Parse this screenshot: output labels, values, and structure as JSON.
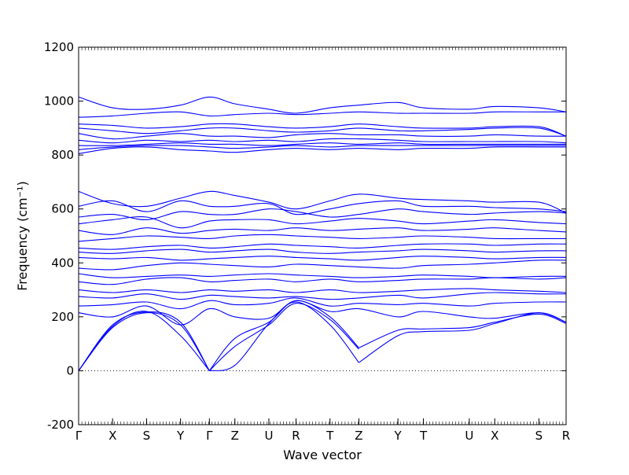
{
  "chart_data": {
    "type": "line",
    "title": "",
    "xlabel": "Wave vector",
    "ylabel": "Frequency (cm⁻¹)",
    "ylim": [
      -200,
      1200
    ],
    "yticks": [
      -200,
      0,
      200,
      400,
      600,
      800,
      1000,
      1200
    ],
    "xticks": [
      {
        "label": "Γ",
        "x": 0.0
      },
      {
        "label": "X",
        "x": 1.0
      },
      {
        "label": "S",
        "x": 2.0
      },
      {
        "label": "Y",
        "x": 3.0
      },
      {
        "label": "Γ",
        "x": 3.85
      },
      {
        "label": "Z",
        "x": 4.6
      },
      {
        "label": "U",
        "x": 5.6
      },
      {
        "label": "R",
        "x": 6.4
      },
      {
        "label": "T",
        "x": 7.4
      },
      {
        "label": "Z",
        "x": 8.25
      },
      {
        "label": "Y",
        "x": 9.4
      },
      {
        "label": "T",
        "x": 10.15
      },
      {
        "label": "U",
        "x": 11.5
      },
      {
        "label": "X",
        "x": 12.25
      },
      {
        "label": "S",
        "x": 13.55
      },
      {
        "label": "R",
        "x": 14.35
      }
    ],
    "xlim": [
      0,
      14.35
    ],
    "zero_line": {
      "y": 0,
      "style": "dotted"
    },
    "line_color": "#0000ff",
    "series": [
      {
        "x": [
          0,
          1,
          2,
          3,
          3.85
        ],
        "values": [
          0,
          165,
          220,
          130,
          0
        ]
      },
      {
        "x": [
          0,
          1,
          2,
          3,
          3.85
        ],
        "values": [
          0,
          160,
          215,
          170,
          0
        ]
      },
      {
        "x": [
          0,
          1,
          2,
          3,
          3.85
        ],
        "values": [
          0,
          170,
          218,
          180,
          0
        ]
      },
      {
        "x": [
          3.85,
          4.6,
          5.6,
          6.4,
          7.4,
          8.25
        ],
        "values": [
          0,
          20,
          175,
          255,
          170,
          30
        ]
      },
      {
        "x": [
          3.85,
          4.6,
          5.6,
          6.4,
          7.4,
          8.25
        ],
        "values": [
          0,
          90,
          170,
          250,
          190,
          80
        ]
      },
      {
        "x": [
          3.85,
          4.6,
          5.6,
          6.4,
          7.4,
          8.25
        ],
        "values": [
          0,
          120,
          180,
          260,
          200,
          85
        ]
      },
      {
        "x": [
          8.25,
          9.4,
          10.15,
          11.5,
          12.25,
          13.55,
          14.35
        ],
        "values": [
          30,
          130,
          145,
          150,
          175,
          215,
          180
        ]
      },
      {
        "x": [
          8.25,
          9.4,
          10.15,
          11.5,
          12.25,
          13.55,
          14.35
        ],
        "values": [
          85,
          150,
          155,
          160,
          180,
          210,
          175
        ]
      },
      {
        "x": [
          0,
          1,
          2,
          3,
          3.85,
          4.6,
          5.6,
          6.4,
          7.4,
          8.25,
          9.4,
          10.15,
          11.5,
          12.25,
          13.55,
          14.35
        ],
        "values": [
          215,
          200,
          240,
          170,
          230,
          200,
          195,
          260,
          220,
          230,
          200,
          220,
          200,
          195,
          215,
          180
        ]
      },
      {
        "x": [
          0,
          1,
          2,
          3,
          3.85,
          4.6,
          5.6,
          6.4,
          7.4,
          8.25,
          9.4,
          10.15,
          11.5,
          12.25,
          13.55,
          14.35
        ],
        "values": [
          240,
          245,
          255,
          230,
          260,
          245,
          250,
          270,
          240,
          250,
          245,
          250,
          240,
          250,
          255,
          255
        ]
      },
      {
        "x": [
          0,
          1,
          2,
          3,
          3.85,
          4.6,
          5.6,
          6.4,
          7.4,
          8.25,
          9.4,
          10.15,
          11.5,
          12.25,
          13.55,
          14.35
        ],
        "values": [
          275,
          270,
          285,
          265,
          280,
          275,
          270,
          275,
          265,
          270,
          280,
          270,
          285,
          290,
          285,
          285
        ]
      },
      {
        "x": [
          0,
          1,
          2,
          3,
          3.85,
          4.6,
          5.6,
          6.4,
          7.4,
          8.25,
          9.4,
          10.15,
          11.5,
          12.25,
          13.55,
          14.35
        ],
        "values": [
          300,
          290,
          300,
          290,
          300,
          295,
          300,
          290,
          300,
          290,
          295,
          300,
          305,
          300,
          295,
          290
        ]
      },
      {
        "x": [
          0,
          1,
          2,
          3,
          3.85,
          4.6,
          5.6,
          6.4,
          7.4,
          8.25,
          9.4,
          10.15,
          11.5,
          12.25,
          13.55,
          14.35
        ],
        "values": [
          330,
          320,
          340,
          345,
          330,
          335,
          340,
          330,
          340,
          330,
          335,
          340,
          340,
          345,
          340,
          345
        ]
      },
      {
        "x": [
          0,
          1,
          2,
          3,
          3.85,
          4.6,
          5.6,
          6.4,
          7.4,
          8.25,
          9.4,
          10.15,
          11.5,
          12.25,
          13.55,
          14.35
        ],
        "values": [
          360,
          345,
          350,
          355,
          350,
          355,
          360,
          355,
          350,
          345,
          350,
          355,
          350,
          345,
          350,
          350
        ]
      },
      {
        "x": [
          0,
          1,
          2,
          3,
          3.85,
          4.6,
          5.6,
          6.4,
          7.4,
          8.25,
          9.4,
          10.15,
          11.5,
          12.25,
          13.55,
          14.35
        ],
        "values": [
          380,
          375,
          390,
          400,
          395,
          390,
          385,
          395,
          390,
          385,
          380,
          390,
          395,
          400,
          410,
          410
        ]
      },
      {
        "x": [
          0,
          1,
          2,
          3,
          3.85,
          4.6,
          5.6,
          6.4,
          7.4,
          8.25,
          9.4,
          10.15,
          11.5,
          12.25,
          13.55,
          14.35
        ],
        "values": [
          420,
          415,
          420,
          410,
          415,
          420,
          425,
          420,
          415,
          410,
          420,
          425,
          420,
          415,
          420,
          420
        ]
      },
      {
        "x": [
          0,
          1,
          2,
          3,
          3.85,
          4.6,
          5.6,
          6.4,
          7.4,
          8.25,
          9.4,
          10.15,
          11.5,
          12.25,
          13.55,
          14.35
        ],
        "values": [
          440,
          435,
          445,
          450,
          440,
          445,
          450,
          440,
          435,
          440,
          445,
          450,
          445,
          440,
          445,
          445
        ]
      },
      {
        "x": [
          0,
          1,
          2,
          3,
          3.85,
          4.6,
          5.6,
          6.4,
          7.4,
          8.25,
          9.4,
          10.15,
          11.5,
          12.25,
          13.55,
          14.35
        ],
        "values": [
          455,
          450,
          460,
          465,
          455,
          460,
          470,
          465,
          460,
          455,
          465,
          470,
          470,
          465,
          470,
          470
        ]
      },
      {
        "x": [
          0,
          1,
          2,
          3,
          3.85,
          4.6,
          5.6,
          6.4,
          7.4,
          8.25,
          9.4,
          10.15,
          11.5,
          12.25,
          13.55,
          14.35
        ],
        "values": [
          480,
          490,
          500,
          495,
          490,
          500,
          505,
          500,
          495,
          490,
          495,
          500,
          495,
          490,
          490,
          490
        ]
      },
      {
        "x": [
          0,
          1,
          2,
          3,
          3.85,
          4.6,
          5.6,
          6.4,
          7.4,
          8.25,
          9.4,
          10.15,
          11.5,
          12.25,
          13.55,
          14.35
        ],
        "values": [
          520,
          505,
          530,
          510,
          520,
          525,
          520,
          530,
          520,
          525,
          530,
          520,
          525,
          530,
          520,
          515
        ]
      },
      {
        "x": [
          0,
          1,
          2,
          3,
          3.85,
          4.6,
          5.6,
          6.4,
          7.4,
          8.25,
          9.4,
          10.15,
          11.5,
          12.25,
          13.55,
          14.35
        ],
        "values": [
          545,
          560,
          570,
          530,
          555,
          560,
          560,
          545,
          555,
          565,
          555,
          545,
          555,
          560,
          550,
          545
        ]
      },
      {
        "x": [
          0,
          1,
          2,
          3,
          3.85,
          4.6,
          5.6,
          6.4,
          7.4,
          8.25,
          9.4,
          10.15,
          11.5,
          12.25,
          13.55,
          14.35
        ],
        "values": [
          570,
          580,
          560,
          590,
          580,
          580,
          600,
          590,
          570,
          580,
          600,
          590,
          580,
          585,
          590,
          585
        ]
      },
      {
        "x": [
          0,
          1,
          2,
          3,
          3.85,
          4.6,
          5.6,
          6.4,
          7.4,
          8.25,
          9.4,
          10.15,
          11.5,
          12.25,
          13.55,
          14.35
        ],
        "values": [
          610,
          630,
          590,
          630,
          610,
          610,
          620,
          580,
          600,
          620,
          630,
          610,
          610,
          605,
          600,
          590
        ]
      },
      {
        "x": [
          0,
          1,
          2,
          3,
          3.85,
          4.6,
          5.6,
          6.4,
          7.4,
          8.25,
          9.4,
          10.15,
          11.5,
          12.25,
          13.55,
          14.35
        ],
        "values": [
          665,
          620,
          610,
          640,
          665,
          650,
          625,
          600,
          630,
          655,
          640,
          635,
          630,
          625,
          625,
          585
        ]
      },
      {
        "x": [
          0,
          1,
          2,
          3,
          3.85,
          4.6,
          5.6,
          6.4,
          7.4,
          8.25,
          9.4,
          10.15,
          11.5,
          12.25,
          13.55,
          14.35
        ],
        "values": [
          805,
          825,
          830,
          820,
          815,
          810,
          820,
          825,
          820,
          825,
          820,
          825,
          825,
          830,
          830,
          830
        ]
      },
      {
        "x": [
          0,
          1,
          2,
          3,
          3.85,
          4.6,
          5.6,
          6.4,
          7.4,
          8.25,
          9.4,
          10.15,
          11.5,
          12.25,
          13.55,
          14.35
        ],
        "values": [
          820,
          830,
          835,
          835,
          830,
          825,
          830,
          835,
          830,
          835,
          835,
          835,
          835,
          835,
          835,
          835
        ]
      },
      {
        "x": [
          0,
          1,
          2,
          3,
          3.85,
          4.6,
          5.6,
          6.4,
          7.4,
          8.25,
          9.4,
          10.15,
          11.5,
          12.25,
          13.55,
          14.35
        ],
        "values": [
          835,
          835,
          840,
          845,
          840,
          840,
          835,
          840,
          845,
          840,
          845,
          840,
          840,
          840,
          840,
          840
        ]
      },
      {
        "x": [
          0,
          1,
          2,
          3,
          3.85,
          4.6,
          5.6,
          6.4,
          7.4,
          8.25,
          9.4,
          10.15,
          11.5,
          12.25,
          13.55,
          14.35
        ],
        "values": [
          855,
          845,
          855,
          850,
          855,
          850,
          855,
          850,
          860,
          860,
          855,
          850,
          850,
          850,
          850,
          845
        ]
      },
      {
        "x": [
          0,
          1,
          2,
          3,
          3.85,
          4.6,
          5.6,
          6.4,
          7.4,
          8.25,
          9.4,
          10.15,
          11.5,
          12.25,
          13.55,
          14.35
        ],
        "values": [
          880,
          860,
          870,
          880,
          870,
          870,
          865,
          875,
          880,
          875,
          875,
          870,
          870,
          875,
          870,
          870
        ]
      },
      {
        "x": [
          0,
          1,
          2,
          3,
          3.85,
          4.6,
          5.6,
          6.4,
          7.4,
          8.25,
          9.4,
          10.15,
          11.5,
          12.25,
          13.55,
          14.35
        ],
        "values": [
          900,
          890,
          880,
          890,
          900,
          900,
          890,
          885,
          890,
          900,
          890,
          890,
          895,
          900,
          900,
          870
        ]
      },
      {
        "x": [
          0,
          1,
          2,
          3,
          3.85,
          4.6,
          5.6,
          6.4,
          7.4,
          8.25,
          9.4,
          10.15,
          11.5,
          12.25,
          13.55,
          14.35
        ],
        "values": [
          915,
          910,
          900,
          905,
          915,
          915,
          905,
          900,
          905,
          915,
          905,
          900,
          900,
          905,
          905,
          870
        ]
      },
      {
        "x": [
          0,
          1,
          2,
          3,
          3.85,
          4.6,
          5.6,
          6.4,
          7.4,
          8.25,
          9.4,
          10.15,
          11.5,
          12.25,
          13.55,
          14.35
        ],
        "values": [
          940,
          945,
          955,
          960,
          945,
          950,
          955,
          950,
          955,
          960,
          955,
          955,
          955,
          960,
          960,
          960
        ]
      },
      {
        "x": [
          0,
          1,
          2,
          3,
          3.85,
          4.6,
          5.6,
          6.4,
          7.4,
          8.25,
          9.4,
          10.15,
          11.5,
          12.25,
          13.55,
          14.35
        ],
        "values": [
          1015,
          975,
          970,
          985,
          1015,
          990,
          970,
          955,
          975,
          985,
          995,
          975,
          970,
          980,
          975,
          960
        ]
      }
    ]
  }
}
